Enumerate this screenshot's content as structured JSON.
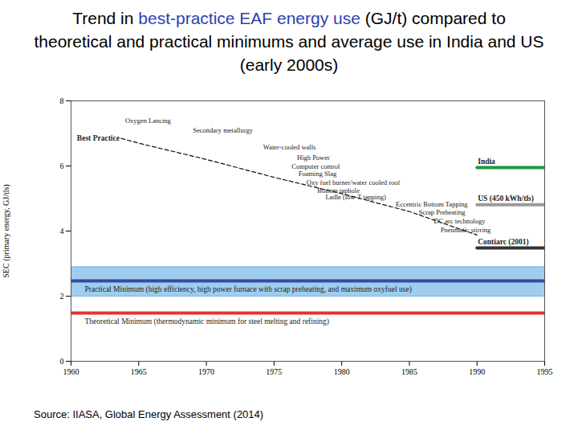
{
  "chart_data": {
    "type": "line",
    "title": "Trend in best-practice EAF energy use (GJ/t) compared to theoretical and practical minimums and average use in India and US (early 2000s)",
    "title_highlight": "best-practice EAF energy use",
    "caption": "Source: IIASA, Global Energy Assessment (2014)",
    "ylabel": "SEC (primary energy, GJ/tls)",
    "xlim": [
      1960,
      1995
    ],
    "xticks": [
      1960,
      1965,
      1970,
      1975,
      1980,
      1985,
      1990,
      1995
    ],
    "ylim": [
      0,
      8
    ],
    "yticks": [
      0,
      2,
      4,
      6,
      8
    ],
    "grid": false,
    "band": {
      "x": [
        1960,
        1995
      ],
      "low": [
        2.0,
        2.0
      ],
      "high": [
        2.9,
        2.9
      ],
      "color": "#9ecdef"
    },
    "series": [
      {
        "name": "Best Practice",
        "color": "#111111",
        "line_style": "dashed",
        "x": [
          1963.7,
          1965,
          1970,
          1975,
          1980,
          1985,
          1990
        ],
        "values": [
          6.85,
          6.7,
          6.2,
          5.65,
          5.15,
          4.6,
          3.88
        ]
      },
      {
        "name": "India",
        "color": "#1f9a3f",
        "line_style": "solid",
        "x": [
          1990,
          1995
        ],
        "values": [
          5.95,
          5.95
        ]
      },
      {
        "name": "US (450 kWh/tls)",
        "color": "#9a9a9a",
        "line_style": "solid",
        "x": [
          1990,
          1995
        ],
        "values": [
          4.81,
          4.81
        ]
      },
      {
        "name": "Contiarc (2001)",
        "color": "#333333",
        "line_style": "solid",
        "x": [
          1990,
          1995
        ],
        "values": [
          3.48,
          3.48
        ]
      },
      {
        "name": "Practical Minimum (high efficiency, high power furnace with scrap preheating, and maximum oxyfuel use)",
        "color": "#3a4aa0",
        "line_style": "solid",
        "x": [
          1960,
          1995
        ],
        "values": [
          2.47,
          2.47
        ]
      },
      {
        "name": "Theoretical Minimum (thermodynamic minimum for steel melting and refining)",
        "color": "#e3342f",
        "line_style": "solid",
        "x": [
          1960,
          1995
        ],
        "values": [
          1.48,
          1.48
        ]
      }
    ],
    "annotations": [
      {
        "text": "Oxygen Lancing",
        "x": 1964.0,
        "y": 7.38
      },
      {
        "text": "Secondary metallurgy",
        "x": 1969.0,
        "y": 7.09
      },
      {
        "text": "Water-cooled walls",
        "x": 1974.2,
        "y": 6.57
      },
      {
        "text": "High Power",
        "x": 1976.7,
        "y": 6.25
      },
      {
        "text": "Computer control",
        "x": 1976.3,
        "y": 5.98
      },
      {
        "text": "Foaming Slag",
        "x": 1976.8,
        "y": 5.75
      },
      {
        "text": "Oxy fuel burner/water cooled roof",
        "x": 1977.4,
        "y": 5.48
      },
      {
        "text": "Bottom taphole",
        "x": 1978.2,
        "y": 5.25
      },
      {
        "text": "Ladle (low-T tapping)",
        "x": 1978.8,
        "y": 5.04
      },
      {
        "text": "Eccentric Bottom Tapping",
        "x": 1984.0,
        "y": 4.81
      },
      {
        "text": "Scrap Preheating",
        "x": 1985.7,
        "y": 4.57
      },
      {
        "text": "DC arc technology",
        "x": 1986.8,
        "y": 4.3
      },
      {
        "text": "Pneumatic stirring",
        "x": 1987.3,
        "y": 4.02
      }
    ]
  }
}
